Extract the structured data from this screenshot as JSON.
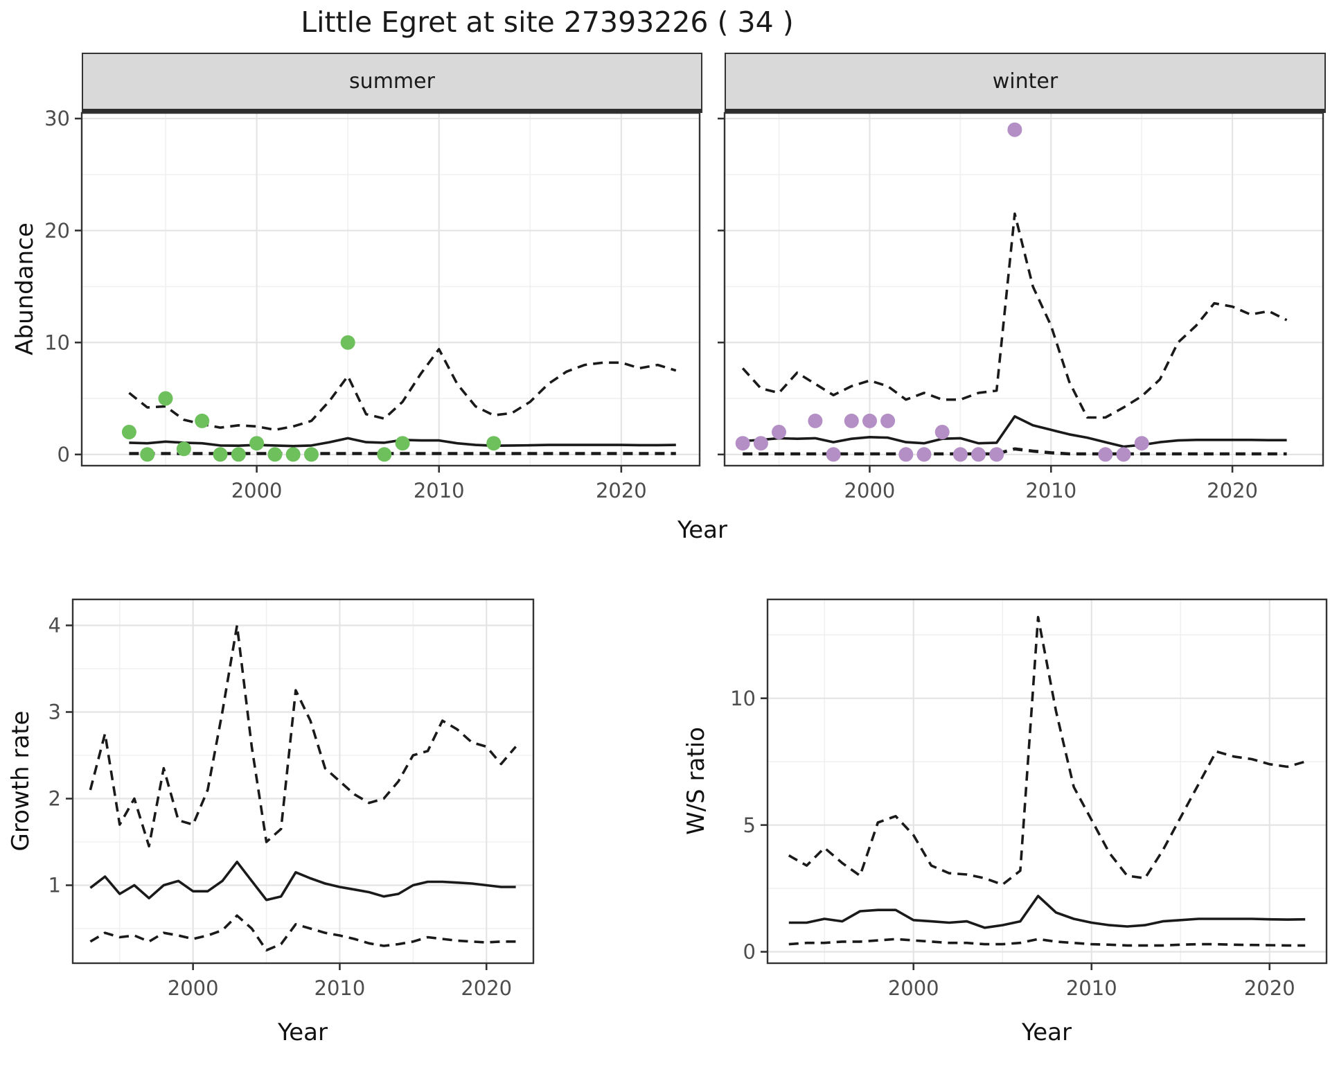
{
  "title": "Little Egret at site 27393226 ( 34 )",
  "facets": {
    "summer_label": "summer",
    "winter_label": "winter"
  },
  "axis": {
    "abundance": "Abundance",
    "year": "Year",
    "growth_rate": "Growth rate",
    "ws_ratio": "W/S ratio"
  },
  "colors": {
    "summer_point": "#6ec05c",
    "winter_point": "#b48fc5",
    "line": "#1a1a1a",
    "panel_bg": "#ffffff",
    "grid_major": "#e4e4e4",
    "grid_minor": "#f0f0f0",
    "panel_border": "#333333",
    "tick": "#333333",
    "axis_text": "#4d4d4d",
    "strip_bg": "#d9d9d9"
  },
  "chart_data": [
    {
      "name": "summer abundance",
      "type": "line+scatter",
      "facet": "summer",
      "xlabel": "Year",
      "ylabel": "Abundance",
      "xlim": [
        1990.4,
        2024.3
      ],
      "ylim": [
        -1.0,
        30.5
      ],
      "xticks": [
        2000,
        2010,
        2020
      ],
      "yticks": [
        0,
        10,
        20,
        30
      ],
      "xticks_minor": [
        1995,
        2005,
        2015
      ],
      "yticks_minor": [
        5,
        15,
        25
      ],
      "years": [
        1993,
        1994,
        1995,
        1996,
        1997,
        1998,
        1999,
        2000,
        2001,
        2002,
        2003,
        2004,
        2005,
        2006,
        2007,
        2008,
        2009,
        2010,
        2011,
        2012,
        2013,
        2014,
        2015,
        2016,
        2017,
        2018,
        2019,
        2020,
        2021,
        2022,
        2023
      ],
      "series": [
        {
          "name": "upper 95% CI",
          "style": "dashed",
          "width": 3.6,
          "values": [
            5.5,
            4.2,
            4.3,
            3.1,
            2.7,
            2.4,
            2.6,
            2.5,
            2.2,
            2.5,
            3.0,
            4.8,
            7.0,
            3.6,
            3.2,
            4.7,
            7.2,
            9.4,
            6.3,
            4.3,
            3.5,
            3.7,
            4.7,
            6.3,
            7.4,
            8.0,
            8.2,
            8.2,
            7.7,
            8.0,
            7.5
          ]
        },
        {
          "name": "median fit",
          "style": "solid",
          "width": 3.6,
          "values": [
            1.05,
            1.0,
            1.15,
            1.05,
            1.0,
            0.8,
            0.78,
            0.85,
            0.8,
            0.75,
            0.8,
            1.1,
            1.45,
            1.1,
            1.05,
            1.3,
            1.25,
            1.25,
            1.0,
            0.85,
            0.78,
            0.8,
            0.82,
            0.85,
            0.85,
            0.85,
            0.85,
            0.85,
            0.83,
            0.83,
            0.85
          ]
        },
        {
          "name": "lower 95% CI",
          "style": "dashed",
          "width": 4.6,
          "values": [
            0.08,
            0.08,
            0.08,
            0.08,
            0.08,
            0.08,
            0.08,
            0.08,
            0.08,
            0.08,
            0.08,
            0.08,
            0.08,
            0.08,
            0.08,
            0.08,
            0.08,
            0.08,
            0.08,
            0.08,
            0.08,
            0.08,
            0.08,
            0.08,
            0.08,
            0.08,
            0.08,
            0.08,
            0.08,
            0.08,
            0.08
          ]
        }
      ],
      "points": {
        "color": "#6ec05c",
        "years": [
          1993,
          1994,
          1995,
          1996,
          1997,
          1998,
          1999,
          2000,
          2001,
          2002,
          2003,
          2005,
          2007,
          2008,
          2013
        ],
        "values": [
          2,
          0,
          5,
          0.5,
          3,
          0,
          0,
          1,
          0,
          0,
          0,
          10,
          0,
          1,
          1
        ]
      }
    },
    {
      "name": "winter abundance",
      "type": "line+scatter",
      "facet": "winter",
      "xlabel": "Year",
      "ylabel": "Abundance",
      "xlim": [
        1992.0,
        2025.0
      ],
      "ylim": [
        -1.0,
        30.5
      ],
      "xticks": [
        2000,
        2010,
        2020
      ],
      "yticks": [
        0,
        10,
        20,
        30
      ],
      "xticks_minor": [
        1995,
        2005,
        2015
      ],
      "yticks_minor": [
        5,
        15,
        25
      ],
      "years": [
        1993,
        1994,
        1995,
        1996,
        1997,
        1998,
        1999,
        2000,
        2001,
        2002,
        2003,
        2004,
        2005,
        2006,
        2007,
        2008,
        2009,
        2010,
        2011,
        2012,
        2013,
        2014,
        2015,
        2016,
        2017,
        2018,
        2019,
        2020,
        2021,
        2022,
        2023
      ],
      "series": [
        {
          "name": "upper 95% CI",
          "style": "dashed",
          "width": 3.6,
          "values": [
            7.7,
            5.9,
            5.5,
            7.3,
            6.3,
            5.3,
            6.1,
            6.6,
            6.1,
            4.9,
            5.5,
            4.9,
            4.9,
            5.5,
            5.7,
            21.5,
            15.0,
            11.5,
            6.5,
            3.3,
            3.3,
            4.2,
            5.2,
            6.7,
            10.0,
            11.5,
            13.5,
            13.2,
            12.5,
            12.8,
            12.0
          ]
        },
        {
          "name": "median fit",
          "style": "solid",
          "width": 3.6,
          "values": [
            1.2,
            1.3,
            1.45,
            1.4,
            1.45,
            1.1,
            1.4,
            1.55,
            1.5,
            1.1,
            1.0,
            1.4,
            1.45,
            1.0,
            1.05,
            3.4,
            2.6,
            2.2,
            1.8,
            1.5,
            1.1,
            0.7,
            0.85,
            1.1,
            1.25,
            1.3,
            1.3,
            1.3,
            1.3,
            1.28,
            1.28
          ]
        },
        {
          "name": "lower 95% CI",
          "style": "dashed",
          "width": 4.6,
          "values": [
            0.05,
            0.05,
            0.05,
            0.05,
            0.05,
            0.05,
            0.05,
            0.05,
            0.05,
            0.05,
            0.05,
            0.05,
            0.05,
            0.05,
            0.05,
            0.5,
            0.3,
            0.15,
            0.05,
            0.05,
            0.05,
            0.05,
            0.05,
            0.05,
            0.05,
            0.05,
            0.05,
            0.05,
            0.05,
            0.05,
            0.05
          ]
        }
      ],
      "points": {
        "color": "#b48fc5",
        "years": [
          1993,
          1994,
          1995,
          1997,
          1998,
          1999,
          2000,
          2001,
          2002,
          2003,
          2004,
          2005,
          2006,
          2007,
          2008,
          2013,
          2014,
          2015
        ],
        "values": [
          1,
          1,
          2,
          3,
          0,
          3,
          3,
          3,
          0,
          0,
          2,
          0,
          0,
          0,
          29,
          0,
          0,
          1
        ]
      }
    },
    {
      "name": "growth rate",
      "type": "line",
      "xlabel": "Year",
      "ylabel": "Growth rate",
      "xlim": [
        1991.8,
        2023.2
      ],
      "ylim": [
        0.1,
        4.3
      ],
      "xticks": [
        2000,
        2010,
        2020
      ],
      "yticks": [
        1,
        2,
        3,
        4
      ],
      "xticks_minor": [
        1995,
        2005,
        2015
      ],
      "yticks_minor": [
        0.5,
        1.5,
        2.5,
        3.5
      ],
      "years": [
        1993,
        1994,
        1995,
        1996,
        1997,
        1998,
        1999,
        2000,
        2001,
        2002,
        2003,
        2004,
        2005,
        2006,
        2007,
        2008,
        2009,
        2010,
        2011,
        2012,
        2013,
        2014,
        2015,
        2016,
        2017,
        2018,
        2019,
        2020,
        2021,
        2022
      ],
      "series": [
        {
          "name": "upper 95% CI",
          "style": "dashed",
          "width": 3.6,
          "values": [
            2.1,
            2.75,
            1.7,
            2.0,
            1.45,
            2.35,
            1.75,
            1.7,
            2.1,
            3.0,
            4.0,
            2.6,
            1.5,
            1.65,
            3.25,
            2.9,
            2.35,
            2.2,
            2.05,
            1.95,
            2.0,
            2.2,
            2.5,
            2.55,
            2.9,
            2.8,
            2.65,
            2.6,
            2.4,
            2.6
          ]
        },
        {
          "name": "median fit",
          "style": "solid",
          "width": 3.6,
          "values": [
            0.97,
            1.1,
            0.9,
            1.0,
            0.85,
            1.0,
            1.05,
            0.93,
            0.93,
            1.05,
            1.27,
            1.05,
            0.83,
            0.87,
            1.15,
            1.08,
            1.02,
            0.98,
            0.95,
            0.92,
            0.87,
            0.9,
            1.0,
            1.04,
            1.04,
            1.03,
            1.02,
            1.0,
            0.98,
            0.98
          ]
        },
        {
          "name": "lower 95% CI",
          "style": "dashed",
          "width": 3.6,
          "values": [
            0.35,
            0.45,
            0.4,
            0.42,
            0.35,
            0.45,
            0.42,
            0.38,
            0.42,
            0.48,
            0.65,
            0.5,
            0.25,
            0.32,
            0.55,
            0.5,
            0.45,
            0.42,
            0.38,
            0.33,
            0.3,
            0.32,
            0.35,
            0.4,
            0.38,
            0.36,
            0.35,
            0.34,
            0.35,
            0.35
          ]
        }
      ]
    },
    {
      "name": "winter/summer ratio",
      "type": "line",
      "xlabel": "Year",
      "ylabel": "W/S ratio",
      "xlim": [
        1991.8,
        2023.2
      ],
      "ylim": [
        -0.45,
        13.9
      ],
      "xticks": [
        2000,
        2010,
        2020
      ],
      "yticks": [
        0,
        5,
        10
      ],
      "xticks_minor": [
        1995,
        2005,
        2015
      ],
      "yticks_minor": [
        2.5,
        7.5,
        12.5
      ],
      "years": [
        1993,
        1994,
        1995,
        1996,
        1997,
        1998,
        1999,
        2000,
        2001,
        2002,
        2003,
        2004,
        2005,
        2006,
        2007,
        2008,
        2009,
        2010,
        2011,
        2012,
        2013,
        2014,
        2015,
        2016,
        2017,
        2018,
        2019,
        2020,
        2021,
        2022
      ],
      "series": [
        {
          "name": "upper 95% CI",
          "style": "dashed",
          "width": 3.6,
          "values": [
            3.8,
            3.4,
            4.1,
            3.5,
            3.0,
            5.1,
            5.35,
            4.6,
            3.4,
            3.1,
            3.05,
            2.9,
            2.65,
            3.2,
            13.2,
            9.5,
            6.5,
            5.2,
            3.9,
            3.0,
            2.9,
            4.0,
            5.3,
            6.6,
            7.9,
            7.7,
            7.6,
            7.4,
            7.3,
            7.5
          ]
        },
        {
          "name": "median fit",
          "style": "solid",
          "width": 3.6,
          "values": [
            1.15,
            1.15,
            1.3,
            1.2,
            1.6,
            1.65,
            1.65,
            1.25,
            1.2,
            1.15,
            1.2,
            0.95,
            1.05,
            1.2,
            2.2,
            1.55,
            1.3,
            1.15,
            1.05,
            1.0,
            1.05,
            1.2,
            1.25,
            1.3,
            1.3,
            1.3,
            1.3,
            1.28,
            1.27,
            1.28
          ]
        },
        {
          "name": "lower 95% CI",
          "style": "dashed",
          "width": 3.6,
          "values": [
            0.3,
            0.35,
            0.35,
            0.4,
            0.4,
            0.45,
            0.5,
            0.45,
            0.4,
            0.35,
            0.35,
            0.3,
            0.3,
            0.35,
            0.5,
            0.4,
            0.35,
            0.3,
            0.28,
            0.25,
            0.25,
            0.25,
            0.28,
            0.3,
            0.3,
            0.28,
            0.27,
            0.26,
            0.25,
            0.25
          ]
        }
      ]
    }
  ]
}
